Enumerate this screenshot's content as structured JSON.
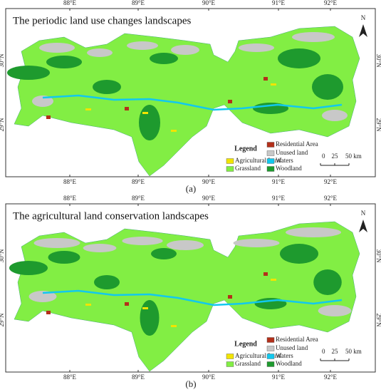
{
  "north": "N",
  "longitudes": [
    "88°E",
    "89°E",
    "90°E",
    "91°E",
    "92°E"
  ],
  "latitudes": [
    "30°N",
    "29°N"
  ],
  "legend": {
    "title": "Legend",
    "items": [
      {
        "label": "Residential Area",
        "color": "#b3301a"
      },
      {
        "label": "Unused land",
        "color": "#c8c8c8"
      },
      {
        "label": "Agricultural Land",
        "color": "#f2e400"
      },
      {
        "label": "Waters",
        "color": "#12c8ee"
      },
      {
        "label": "Grassland",
        "color": "#82ee44"
      },
      {
        "label": "Woodland",
        "color": "#1e9a2e"
      }
    ]
  },
  "scale_bar": [
    "0",
    "25",
    "50 km"
  ],
  "panels": [
    {
      "title": "The periodic land use changes landscapes",
      "caption": "(a)"
    },
    {
      "title": "The agricultural land conservation landscapes",
      "caption": "(b)"
    }
  ]
}
